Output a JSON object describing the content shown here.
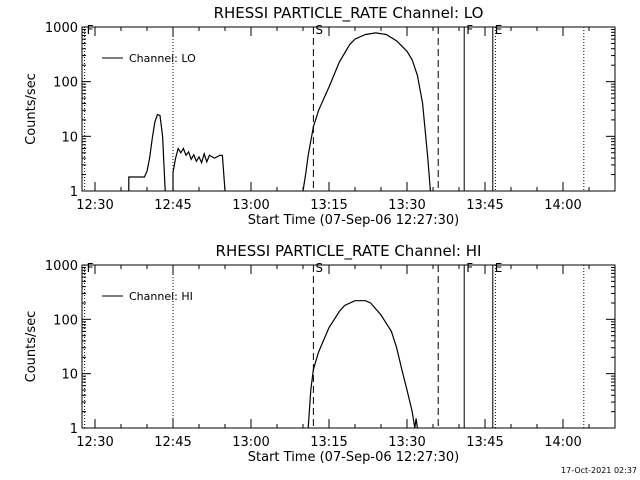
{
  "footer": {
    "timestamp": "17-Oct-2021 02:37"
  },
  "chart_data": [
    {
      "type": "line",
      "title": "RHESSI PARTICLE_RATE Channel: LO",
      "xlabel": "Start Time (07-Sep-06 12:27:30)",
      "ylabel": "Counts/sec",
      "yscale": "log",
      "ylim": [
        1,
        1000
      ],
      "xlim": [
        "12:27:30",
        "14:10:00"
      ],
      "x_ticks": [
        "12:30",
        "12:45",
        "13:00",
        "13:15",
        "13:30",
        "13:45",
        "14:00"
      ],
      "y_ticks": [
        "1",
        "10",
        "100",
        "1000"
      ],
      "legend": {
        "label": "Channel: LO",
        "position": "top-left"
      },
      "markers": [
        {
          "label": "F",
          "time": "12:28:00",
          "style": "dotted"
        },
        {
          "label": "",
          "time": "12:45:00",
          "style": "dotted"
        },
        {
          "label": "S",
          "time": "13:12:00",
          "style": "dashed"
        },
        {
          "label": "",
          "time": "13:36:00",
          "style": "dashed"
        },
        {
          "label": "F",
          "time": "13:41:00",
          "style": "solid"
        },
        {
          "label": "E",
          "time": "13:46:30",
          "style": "solid"
        },
        {
          "label": "",
          "time": "13:47:00",
          "style": "dotted"
        },
        {
          "label": "",
          "time": "14:04:00",
          "style": "dotted"
        }
      ],
      "series": [
        {
          "name": "Channel: LO",
          "segments": [
            [
              [
                "12:36:30",
                1
              ],
              [
                "12:36:30",
                1.8
              ],
              [
                "12:39:30",
                1.8
              ],
              [
                "12:40:00",
                2.3
              ],
              [
                "12:40:30",
                4
              ],
              [
                "12:41:00",
                9
              ],
              [
                "12:41:30",
                18
              ],
              [
                "12:42:00",
                25
              ],
              [
                "12:42:30",
                24
              ],
              [
                "12:43:00",
                10
              ],
              [
                "12:43:30",
                1
              ]
            ],
            [
              [
                "12:45:00",
                1
              ],
              [
                "12:45:00",
                2.2
              ],
              [
                "12:45:30",
                4
              ],
              [
                "12:46:00",
                6
              ],
              [
                "12:46:30",
                5
              ],
              [
                "12:47:00",
                6
              ],
              [
                "12:47:30",
                4.5
              ],
              [
                "12:48:00",
                5.2
              ],
              [
                "12:48:30",
                3.8
              ],
              [
                "12:49:00",
                4.6
              ],
              [
                "12:49:30",
                3.5
              ],
              [
                "12:50:00",
                4.2
              ],
              [
                "12:50:30",
                3.3
              ],
              [
                "12:51:00",
                4.8
              ],
              [
                "12:51:30",
                3.4
              ],
              [
                "12:52:00",
                4.5
              ],
              [
                "12:53:00",
                4
              ],
              [
                "12:54:00",
                4.5
              ],
              [
                "12:54:30",
                4.5
              ],
              [
                "12:55:00",
                1
              ]
            ],
            [
              [
                "13:10:00",
                1
              ],
              [
                "13:10:30",
                2
              ],
              [
                "13:11:00",
                4.5
              ],
              [
                "13:12:00",
                15
              ],
              [
                "13:13:00",
                30
              ],
              [
                "13:15:00",
                80
              ],
              [
                "13:17:00",
                230
              ],
              [
                "13:19:00",
                480
              ],
              [
                "13:20:00",
                600
              ],
              [
                "13:22:00",
                730
              ],
              [
                "13:24:00",
                780
              ],
              [
                "13:26:00",
                730
              ],
              [
                "13:28:00",
                560
              ],
              [
                "13:30:00",
                360
              ],
              [
                "13:31:00",
                250
              ],
              [
                "13:32:00",
                130
              ],
              [
                "13:33:00",
                40
              ],
              [
                "13:34:00",
                4
              ],
              [
                "13:34:30",
                1
              ]
            ]
          ]
        }
      ]
    },
    {
      "type": "line",
      "title": "RHESSI PARTICLE_RATE Channel: HI",
      "xlabel": "Start Time (07-Sep-06 12:27:30)",
      "ylabel": "Counts/sec",
      "yscale": "log",
      "ylim": [
        1,
        1000
      ],
      "xlim": [
        "12:27:30",
        "14:10:00"
      ],
      "x_ticks": [
        "12:30",
        "12:45",
        "13:00",
        "13:15",
        "13:30",
        "13:45",
        "14:00"
      ],
      "y_ticks": [
        "1",
        "10",
        "100",
        "1000"
      ],
      "legend": {
        "label": "Channel: HI",
        "position": "top-left"
      },
      "markers": [
        {
          "label": "F",
          "time": "12:28:00",
          "style": "dotted"
        },
        {
          "label": "",
          "time": "12:45:00",
          "style": "dotted"
        },
        {
          "label": "S",
          "time": "13:12:00",
          "style": "dashed"
        },
        {
          "label": "",
          "time": "13:36:00",
          "style": "dashed"
        },
        {
          "label": "F",
          "time": "13:41:00",
          "style": "solid"
        },
        {
          "label": "E",
          "time": "13:46:30",
          "style": "solid"
        },
        {
          "label": "",
          "time": "13:47:00",
          "style": "dotted"
        },
        {
          "label": "",
          "time": "14:04:00",
          "style": "dotted"
        }
      ],
      "series": [
        {
          "name": "Channel: HI",
          "segments": [
            [
              [
                "13:11:00",
                1
              ],
              [
                "13:11:30",
                5
              ],
              [
                "13:12:00",
                12
              ],
              [
                "13:13:00",
                25
              ],
              [
                "13:15:00",
                70
              ],
              [
                "13:17:00",
                140
              ],
              [
                "13:18:00",
                180
              ],
              [
                "13:20:00",
                220
              ],
              [
                "13:22:00",
                220
              ],
              [
                "13:23:00",
                200
              ],
              [
                "13:25:00",
                120
              ],
              [
                "13:27:00",
                60
              ],
              [
                "13:28:00",
                30
              ],
              [
                "13:29:00",
                12
              ],
              [
                "13:30:00",
                5
              ],
              [
                "13:31:00",
                2
              ],
              [
                "13:31:30",
                1
              ],
              [
                "13:31:45",
                1.5
              ],
              [
                "13:32:00",
                1
              ]
            ]
          ]
        }
      ]
    }
  ]
}
